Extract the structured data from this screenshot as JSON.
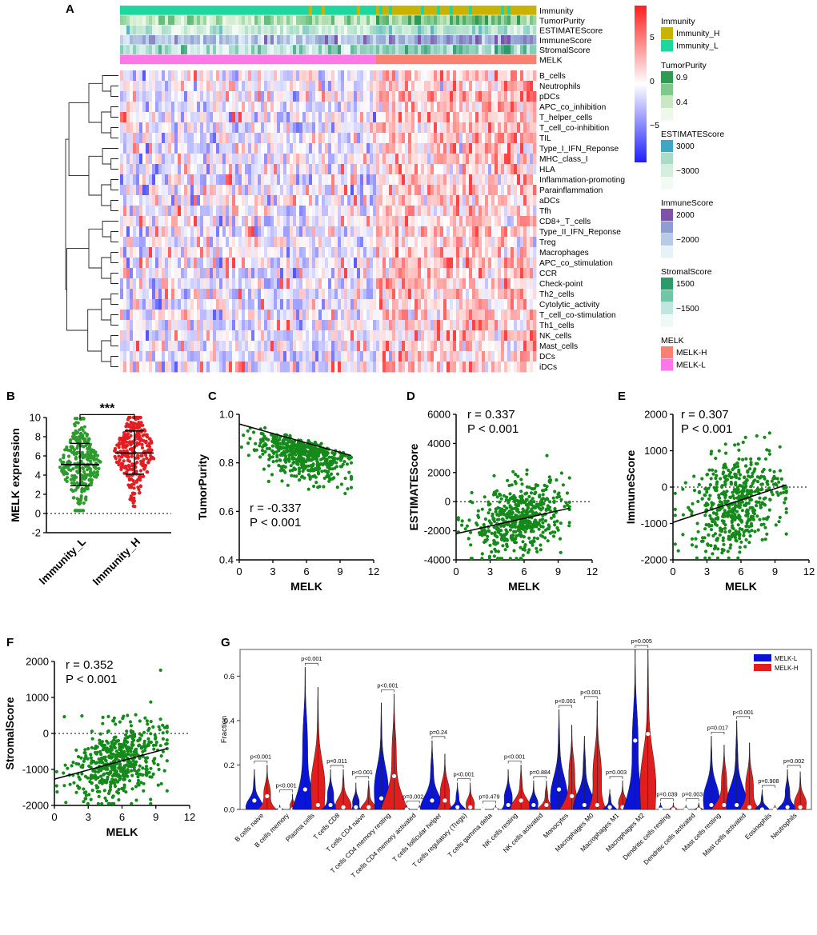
{
  "panels": {
    "A": "A",
    "B": "B",
    "C": "C",
    "D": "D",
    "E": "E",
    "F": "F",
    "G": "G"
  },
  "chart_data": [
    {
      "panel": "A",
      "type": "heatmap",
      "annotation_tracks": [
        "Immunity",
        "TumorPurity",
        "ESTIMATEScore",
        "ImmuneScore",
        "StromalScore",
        "MELK"
      ],
      "rows": [
        "B_cells",
        "Neutrophils",
        "pDCs",
        "APC_co_inhibition",
        "T_helper_cells",
        "T_cell_co-inhibition",
        "TIL",
        "Type_I_IFN_Reponse",
        "MHC_class_I",
        "HLA",
        "Inflammation-promoting",
        "Parainflammation",
        "aDCs",
        "Tfh",
        "CD8+_T_cells",
        "Type_II_IFN_Reponse",
        "Treg",
        "Macrophages",
        "APC_co_stimulation",
        "CCR",
        "Check-point",
        "Th2_cells",
        "Cytolytic_activity",
        "T_cell_co-stimulation",
        "Th1_cells",
        "NK_cells",
        "Mast_cells",
        "DCs",
        "iDCs"
      ],
      "colorbar": {
        "ticks": [
          "5",
          "0",
          "−5"
        ],
        "colors": {
          "high": "#ff1f1f",
          "mid": "#ffffff",
          "low": "#1f1fff"
        }
      },
      "legends": [
        {
          "title": "Immunity",
          "entries": [
            {
              "label": "Immunity_H",
              "color": "#c8b400"
            },
            {
              "label": "Immunity_L",
              "color": "#1ed7a0"
            }
          ]
        },
        {
          "title": "TumorPurity",
          "entries": [
            {
              "label": "0.9",
              "color": "#2e9a52"
            },
            {
              "label": "",
              "color": "#7cc98a"
            },
            {
              "label": "0.4",
              "color": "#c8e8c4"
            },
            {
              "label": "",
              "color": "#eef8ea"
            }
          ]
        },
        {
          "title": "ESTIMATEScore",
          "entries": [
            {
              "label": "3000",
              "color": "#3fa7c6"
            },
            {
              "label": "",
              "color": "#a8dcc9"
            },
            {
              "label": "−3000",
              "color": "#d4eedd"
            },
            {
              "label": "",
              "color": "#f2fbf3"
            }
          ]
        },
        {
          "title": "ImmuneScore",
          "entries": [
            {
              "label": "2000",
              "color": "#7d52a8"
            },
            {
              "label": "",
              "color": "#8f9ed0"
            },
            {
              "label": "−2000",
              "color": "#b7cbe6"
            },
            {
              "label": "",
              "color": "#e6f2f8"
            }
          ]
        },
        {
          "title": "StromalScore",
          "entries": [
            {
              "label": "1500",
              "color": "#2e9a6a"
            },
            {
              "label": "",
              "color": "#72c6a8"
            },
            {
              "label": "−1500",
              "color": "#bfe6df"
            },
            {
              "label": "",
              "color": "#eef8f6"
            }
          ]
        },
        {
          "title": "MELK",
          "entries": [
            {
              "label": "MELK-H",
              "color": "#fa8072"
            },
            {
              "label": "MELK-L",
              "color": "#ff77e6"
            }
          ]
        }
      ]
    },
    {
      "panel": "B",
      "type": "scatter",
      "ylabel": "MELK  expression",
      "categories": [
        "Immunity_L",
        "Immunity_H"
      ],
      "colors": [
        "#2e9a2e",
        "#e31d22"
      ],
      "ylim": [
        -2,
        10
      ],
      "yticks": [
        "-2",
        "0",
        "2",
        "4",
        "6",
        "8",
        "10"
      ],
      "mean": [
        5.1,
        6.3
      ],
      "sd_low": [
        2.9,
        4.1
      ],
      "sd_high": [
        7.3,
        8.6
      ],
      "range": [
        [
          0.3,
          9.9
        ],
        [
          0.1,
          10.0
        ]
      ],
      "significance": "***",
      "reference_line": 0
    },
    {
      "panel": "C",
      "type": "scatter",
      "xlabel": "MELK",
      "ylabel": "TumorPurity",
      "xlim": [
        0,
        12
      ],
      "ylim": [
        0.4,
        1.0
      ],
      "xticks": [
        "0",
        "3",
        "6",
        "9",
        "12"
      ],
      "yticks": [
        "0.4",
        "0.6",
        "0.8",
        "1.0"
      ],
      "r_text": "r = -0.337",
      "p_text": "P < 0.001",
      "fit": {
        "x": [
          0,
          10
        ],
        "y": [
          0.96,
          0.83
        ]
      },
      "reference_line": null,
      "n_points": 540
    },
    {
      "panel": "D",
      "type": "scatter",
      "xlabel": "MELK",
      "ylabel": "ESTIMATEScore",
      "xlim": [
        0,
        12
      ],
      "ylim": [
        -4000,
        6000
      ],
      "xticks": [
        "0",
        "3",
        "6",
        "9",
        "12"
      ],
      "yticks": [
        "-4000",
        "-2000",
        "0",
        "2000",
        "4000",
        "6000"
      ],
      "r_text": "r = 0.337",
      "p_text": "P < 0.001",
      "fit": {
        "x": [
          0,
          10
        ],
        "y": [
          -2200,
          -450
        ]
      },
      "reference_line": 0,
      "n_points": 540
    },
    {
      "panel": "E",
      "type": "scatter",
      "xlabel": "MELK",
      "ylabel": "ImmuneScore",
      "xlim": [
        0,
        12
      ],
      "ylim": [
        -2000,
        2000
      ],
      "xticks": [
        "0",
        "3",
        "6",
        "9",
        "12"
      ],
      "yticks": [
        "-2000",
        "-1000",
        "0",
        "1000",
        "2000"
      ],
      "r_text": "r = 0.307",
      "p_text": "P < 0.001",
      "fit": {
        "x": [
          0,
          10
        ],
        "y": [
          -970,
          60
        ]
      },
      "reference_line": 0,
      "n_points": 540
    },
    {
      "panel": "F",
      "type": "scatter",
      "xlabel": "MELK",
      "ylabel": "StromalScore",
      "xlim": [
        0,
        12
      ],
      "ylim": [
        -2000,
        2000
      ],
      "xticks": [
        "0",
        "3",
        "6",
        "9",
        "12"
      ],
      "yticks": [
        "-2000",
        "-1000",
        "0",
        "1000",
        "2000"
      ],
      "r_text": "r = 0.352",
      "p_text": "P < 0.001",
      "fit": {
        "x": [
          0,
          10
        ],
        "y": [
          -1270,
          -420
        ]
      },
      "reference_line": 0,
      "n_points": 540
    },
    {
      "panel": "G",
      "type": "violin",
      "ylabel": "Fraction",
      "ylim": [
        0,
        0.72
      ],
      "yticks": [
        "0.0",
        "0.2",
        "0.4",
        "0.6"
      ],
      "legend": [
        {
          "label": "MELK-L",
          "color": "#0a14d6"
        },
        {
          "label": "MELK-H",
          "color": "#e01e1e"
        }
      ],
      "categories": [
        "B cells naive",
        "B cells memory",
        "Plasma cells",
        "T cells CD8",
        "T cells CD4 naive",
        "T cells CD4 memory resting",
        "T cells CD4 memory activated",
        "T cells follicular helper",
        "T cells regulatory (Tregs)",
        "T cells gamma delta",
        "NK cells resting",
        "NK cells activated",
        "Monocytes",
        "Macrophages M0",
        "Macrophages M1",
        "Macrophages M2",
        "Dendritic cells resting",
        "Dendritic cells activated",
        "Mast cells resting",
        "Mast cells activated",
        "Eosinophils",
        "Neutrophils"
      ],
      "pvalues": [
        "p<0.001",
        "p<0.001",
        "p<0.001",
        "p=0.011",
        "p<0.001",
        "p<0.001",
        "p=0.002",
        "p=0.24",
        "p<0.001",
        "p=0.479",
        "p<0.001",
        "p=0.884",
        "p<0.001",
        "p<0.001",
        "p=0.003",
        "p=0.005",
        "p=0.039",
        "p=0.003",
        "p=0.017",
        "p<0.001",
        "p=0.908",
        "p=0.002"
      ],
      "series": [
        {
          "name": "MELK-L",
          "max": [
            0.18,
            0.02,
            0.64,
            0.18,
            0.12,
            0.48,
            0.02,
            0.31,
            0.12,
            0.01,
            0.18,
            0.13,
            0.45,
            0.33,
            0.09,
            0.72,
            0.03,
            0.02,
            0.33,
            0.4,
            0.09,
            0.18
          ],
          "median": [
            0.04,
            0.0,
            0.09,
            0.02,
            0.01,
            0.05,
            0.0,
            0.04,
            0.01,
            0.0,
            0.02,
            0.02,
            0.09,
            0.02,
            0.01,
            0.31,
            0.0,
            0.0,
            0.02,
            0.02,
            0.0,
            0.01
          ]
        },
        {
          "name": "MELK-H",
          "max": [
            0.2,
            0.07,
            0.55,
            0.18,
            0.13,
            0.52,
            0.02,
            0.25,
            0.12,
            0.02,
            0.2,
            0.13,
            0.38,
            0.49,
            0.13,
            0.72,
            0.03,
            0.03,
            0.29,
            0.3,
            0.02,
            0.17
          ],
          "median": [
            0.06,
            0.0,
            0.02,
            0.01,
            0.01,
            0.15,
            0.0,
            0.04,
            0.01,
            0.0,
            0.04,
            0.02,
            0.06,
            0.02,
            0.01,
            0.34,
            0.0,
            0.0,
            0.02,
            0.01,
            0.0,
            0.01
          ]
        }
      ]
    }
  ]
}
